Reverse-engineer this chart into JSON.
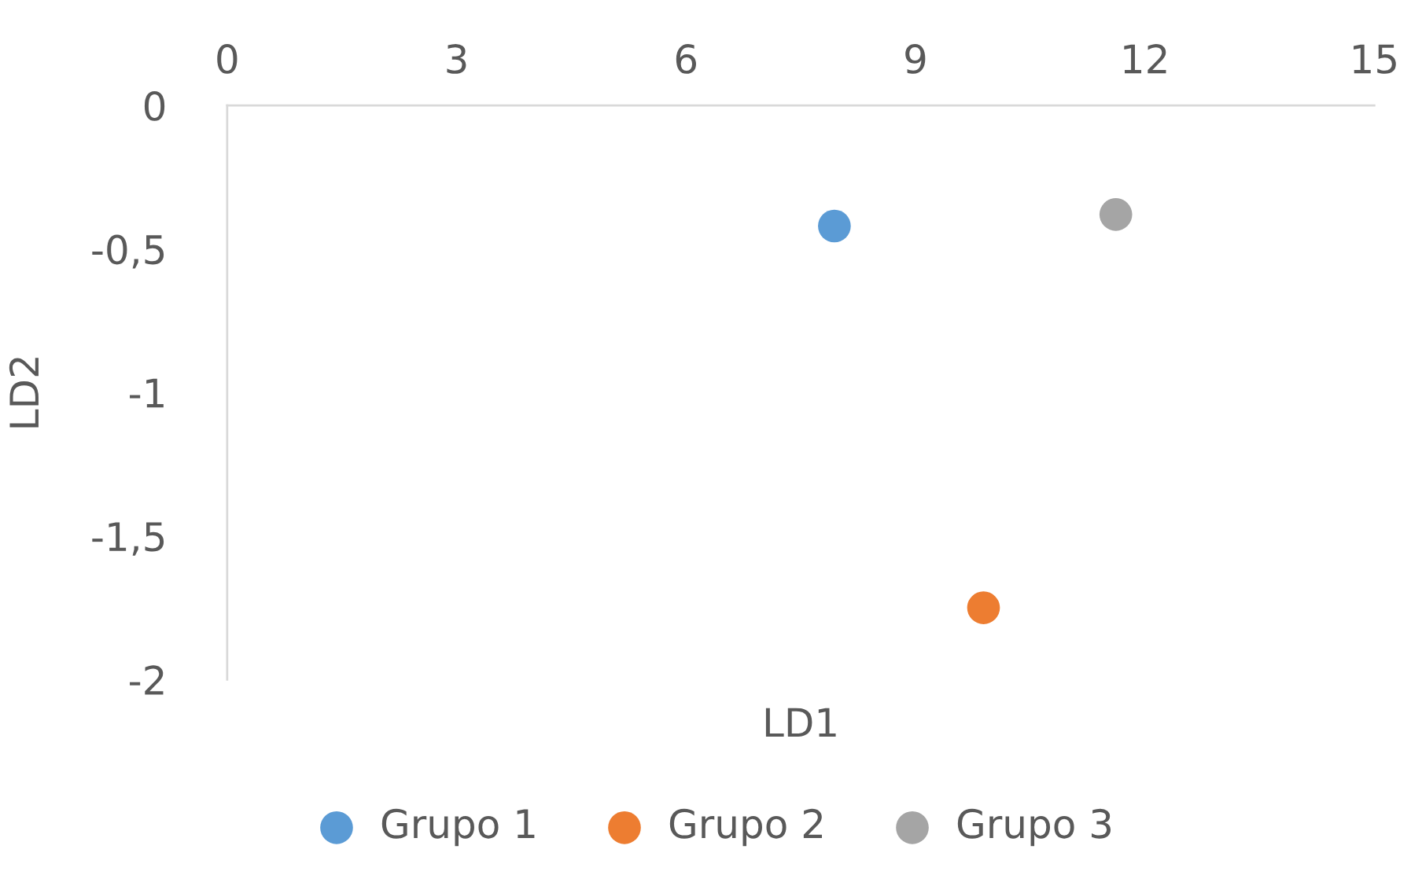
{
  "chart_data": {
    "type": "scatter",
    "xlabel": "LD1",
    "ylabel": "LD2",
    "xlim": [
      0,
      15
    ],
    "xticks": [
      0,
      3,
      6,
      9,
      12,
      15
    ],
    "ylim": [
      -2,
      0
    ],
    "yticks": [
      {
        "value": -2,
        "label": "-2"
      },
      {
        "value": -1.5,
        "label": "-1,5"
      },
      {
        "value": -1,
        "label": "-1"
      },
      {
        "value": -0.5,
        "label": "-0,5"
      },
      {
        "value": 0,
        "label": "0"
      }
    ],
    "series": [
      {
        "name": "Grupo 1",
        "color": "#5b9bd5",
        "x": [
          7.94
        ],
        "values": [
          -0.42
        ]
      },
      {
        "name": "Grupo 2",
        "color": "#ed7d31",
        "x": [
          9.89
        ],
        "values": [
          -1.75
        ]
      },
      {
        "name": "Grupo 3",
        "color": "#a5a5a5",
        "x": [
          11.62
        ],
        "values": [
          -0.38
        ]
      }
    ],
    "marker": "circle",
    "grid": false,
    "legend": "bottom"
  }
}
